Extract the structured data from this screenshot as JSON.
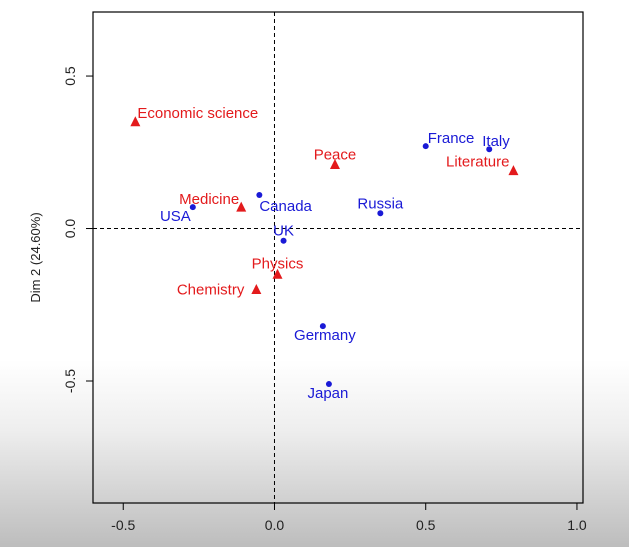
{
  "chart_data": {
    "type": "scatter",
    "title": "",
    "xlabel": "",
    "ylabel": "Dim 2 (24.60%)",
    "xlim": [
      -0.6,
      1.02
    ],
    "ylim": [
      -0.9,
      0.71
    ],
    "x_ticks": [
      -0.5,
      0.0,
      0.5,
      1.0
    ],
    "x_tick_labels": [
      "-0.5",
      "0.0",
      "0.5",
      "1.0"
    ],
    "y_ticks": [
      -0.5,
      0.0,
      0.5
    ],
    "y_tick_labels": [
      "-0.5",
      "0.0",
      "0.5"
    ],
    "reference_lines": {
      "x": 0,
      "y": 0,
      "style": "dashed"
    },
    "grid": false,
    "colors": {
      "countries": "#1a1ad6",
      "prizes": "#e31a1c"
    },
    "series": [
      {
        "marker": "circle",
        "color": "#1a1ad6",
        "points": [
          {
            "label": "France",
            "x": 0.5,
            "y": 0.27
          },
          {
            "label": "Italy",
            "x": 0.71,
            "y": 0.26
          },
          {
            "label": "Canada",
            "x": -0.05,
            "y": 0.11
          },
          {
            "label": "USA",
            "x": -0.27,
            "y": 0.07
          },
          {
            "label": "Russia",
            "x": 0.35,
            "y": 0.05
          },
          {
            "label": "UK",
            "x": 0.03,
            "y": -0.04
          },
          {
            "label": "Germany",
            "x": 0.16,
            "y": -0.32
          },
          {
            "label": "Japan",
            "x": 0.18,
            "y": -0.51
          }
        ]
      },
      {
        "marker": "triangle",
        "color": "#e31a1c",
        "points": [
          {
            "label": "Economic science",
            "x": -0.46,
            "y": 0.35
          },
          {
            "label": "Peace",
            "x": 0.2,
            "y": 0.21
          },
          {
            "label": "Literature",
            "x": 0.79,
            "y": 0.19
          },
          {
            "label": "Medicine",
            "x": -0.11,
            "y": 0.07
          },
          {
            "label": "Physics",
            "x": 0.01,
            "y": -0.15
          },
          {
            "label": "Chemistry",
            "x": -0.06,
            "y": -0.2
          }
        ]
      }
    ]
  }
}
